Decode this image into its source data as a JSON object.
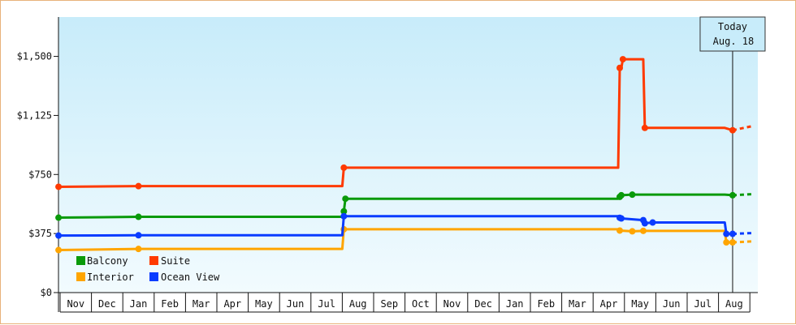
{
  "chart_data": {
    "type": "line",
    "title": "",
    "xlabel": "",
    "ylabel": "",
    "ylim": [
      0,
      1750
    ],
    "y_ticks": [
      {
        "value": 0,
        "label": "$0"
      },
      {
        "value": 375,
        "label": "$375"
      },
      {
        "value": 750,
        "label": "$750"
      },
      {
        "value": 1125,
        "label": "$1,125"
      },
      {
        "value": 1500,
        "label": "$1,500"
      }
    ],
    "x_months": [
      "Nov",
      "Dec",
      "Jan",
      "Feb",
      "Mar",
      "Apr",
      "May",
      "Jun",
      "Jul",
      "Aug",
      "Sep",
      "Oct",
      "Nov",
      "Dec",
      "Jan",
      "Feb",
      "Mar",
      "Apr",
      "May",
      "Jun",
      "Jul",
      "Aug"
    ],
    "x_range": [
      0,
      22
    ],
    "grid": false,
    "legend_placement": "bottom-left",
    "today": {
      "line1": "Today",
      "line2": "Aug. 18",
      "x": 21.45
    },
    "forecast_end_x": 22.05,
    "series": [
      {
        "name": "Balcony",
        "color": "#0a9a0a",
        "points": [
          [
            -0.05,
            476
          ],
          [
            2.5,
            481
          ],
          [
            9.0,
            481
          ],
          [
            9.05,
            516
          ],
          [
            9.1,
            596
          ],
          [
            17.8,
            596
          ],
          [
            17.85,
            608
          ],
          [
            17.9,
            618
          ],
          [
            18.25,
            622
          ],
          [
            18.6,
            622
          ],
          [
            18.9,
            622
          ],
          [
            21.2,
            622
          ],
          [
            21.45,
            618
          ]
        ],
        "forecast": 625
      },
      {
        "name": "Suite",
        "color": "#ff3a00",
        "points": [
          [
            -0.05,
            672
          ],
          [
            2.5,
            676
          ],
          [
            9.0,
            676
          ],
          [
            9.05,
            793
          ],
          [
            17.8,
            793
          ],
          [
            17.85,
            1427
          ],
          [
            17.9,
            1427
          ],
          [
            17.95,
            1482
          ],
          [
            18.6,
            1482
          ],
          [
            18.65,
            1046
          ],
          [
            21.2,
            1046
          ],
          [
            21.45,
            1031
          ]
        ],
        "forecast": 1056
      },
      {
        "name": "Interior",
        "color": "#ffa500",
        "points": [
          [
            -0.05,
            270
          ],
          [
            2.5,
            277
          ],
          [
            9.0,
            277
          ],
          [
            9.05,
            402
          ],
          [
            17.8,
            402
          ],
          [
            17.85,
            394
          ],
          [
            18.25,
            389
          ],
          [
            18.6,
            392
          ],
          [
            21.2,
            392
          ],
          [
            21.25,
            319
          ],
          [
            21.45,
            319
          ]
        ],
        "forecast": 325
      },
      {
        "name": "Ocean View",
        "color": "#0a3cff",
        "points": [
          [
            -0.05,
            362
          ],
          [
            2.5,
            364
          ],
          [
            9.0,
            364
          ],
          [
            9.05,
            485
          ],
          [
            17.8,
            485
          ],
          [
            17.85,
            475
          ],
          [
            17.9,
            471
          ],
          [
            18.6,
            460
          ],
          [
            18.65,
            440
          ],
          [
            18.9,
            445
          ],
          [
            21.2,
            445
          ],
          [
            21.25,
            373
          ],
          [
            21.45,
            373
          ]
        ],
        "forecast": 378
      }
    ]
  }
}
